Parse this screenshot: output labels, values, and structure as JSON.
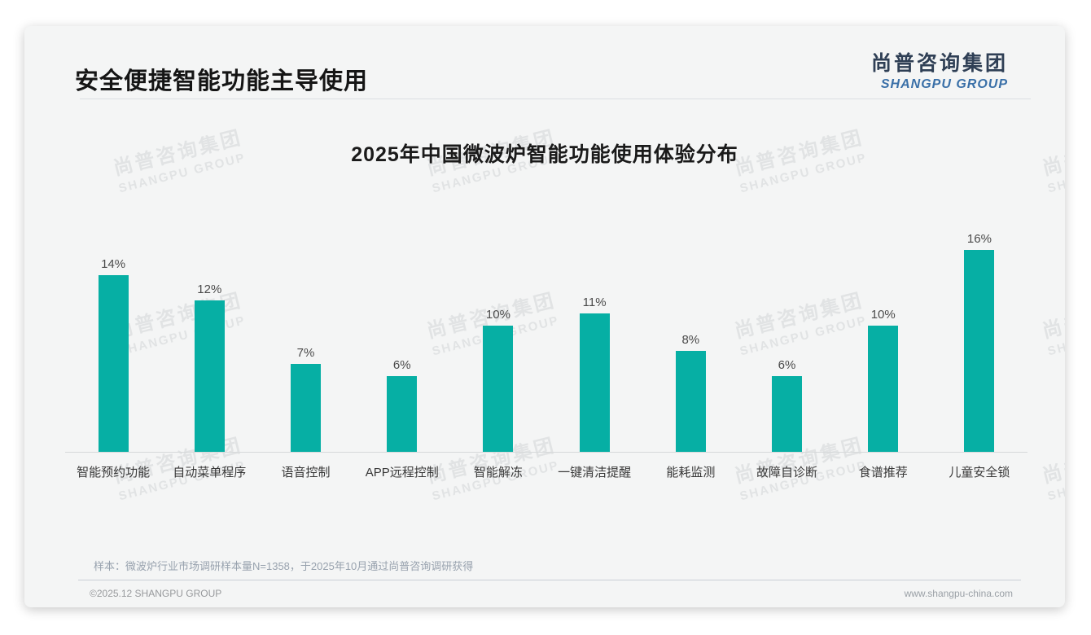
{
  "header": {
    "title": "安全便捷智能功能主导使用"
  },
  "logo": {
    "cn": "尚普咨询集团",
    "en": "SHANGPU GROUP"
  },
  "watermark": {
    "cn": "尚普咨询集团",
    "en": "SHANGPU GROUP"
  },
  "footer": {
    "note": "样本：微波炉行业市场调研样本量N=1358，于2025年10月通过尚普咨询调研获得",
    "copyright": "©2025.12 SHANGPU GROUP",
    "website": "www.shangpu-china.com"
  },
  "colors": {
    "bar": "#06afa4",
    "logo_cn": "#2f3f55",
    "logo_en": "#3a70a8",
    "card_bg": "#f4f5f5",
    "title_text": "#151515"
  },
  "chart_data": {
    "type": "bar",
    "title": "2025年中国微波炉智能功能使用体验分布",
    "categories": [
      "智能预约功能",
      "自动菜单程序",
      "语音控制",
      "APP远程控制",
      "智能解冻",
      "一键清洁提醒",
      "能耗监测",
      "故障自诊断",
      "食谱推荐",
      "儿童安全锁"
    ],
    "values": [
      14,
      12,
      7,
      6,
      10,
      11,
      8,
      6,
      10,
      16
    ],
    "unit": "%",
    "xlabel": "",
    "ylabel": "",
    "ylim": [
      0,
      17
    ],
    "grid": false,
    "legend": "none",
    "data_labels_visible": true,
    "bar_color": "#06afa4"
  }
}
